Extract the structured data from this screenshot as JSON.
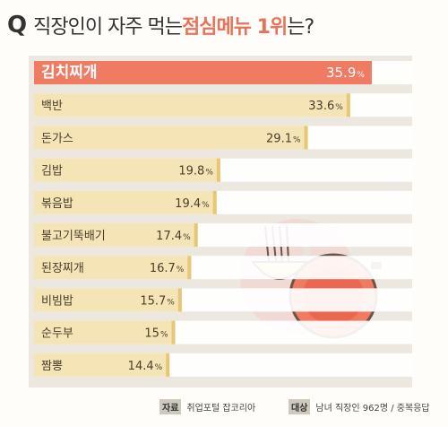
{
  "header": {
    "q_mark": "Q",
    "question_prefix": "직장인이 자주 먹는 ",
    "question_highlight": "점심메뉴 1위",
    "question_suffix": "는?"
  },
  "chart_data": {
    "type": "bar",
    "orientation": "horizontal",
    "title": "직장인이 자주 먹는 점심메뉴 1위는?",
    "categories": [
      "김치찌개",
      "백반",
      "돈가스",
      "김밥",
      "볶음밥",
      "불고기뚝배기",
      "된장찌개",
      "비빔밥",
      "순두부",
      "짬뽕"
    ],
    "values": [
      35.9,
      33.6,
      29.1,
      19.8,
      19.4,
      17.4,
      16.7,
      15.7,
      15,
      14.4
    ],
    "value_labels": [
      "35.9",
      "33.6",
      "29.1",
      "19.8",
      "19.4",
      "17.4",
      "16.7",
      "15.7",
      "15",
      "14.4"
    ],
    "unit": "%",
    "xlim": [
      0,
      40
    ],
    "grid": false,
    "legend": "none",
    "highlight_index": 0,
    "colors": {
      "highlight_bar": "#ef7b62",
      "bar": "#f4e4b6",
      "bar_edge": "#e7c777",
      "track": "#ffffff",
      "panel": "#ece8df",
      "highlight_text": "#ffffff",
      "text": "#4a3f2a"
    }
  },
  "footer": {
    "source_tag": "자료",
    "source_text": "취업포털 잡코리아",
    "target_tag": "대상",
    "target_text": "남녀 직장인 962명 / 중복응답"
  }
}
